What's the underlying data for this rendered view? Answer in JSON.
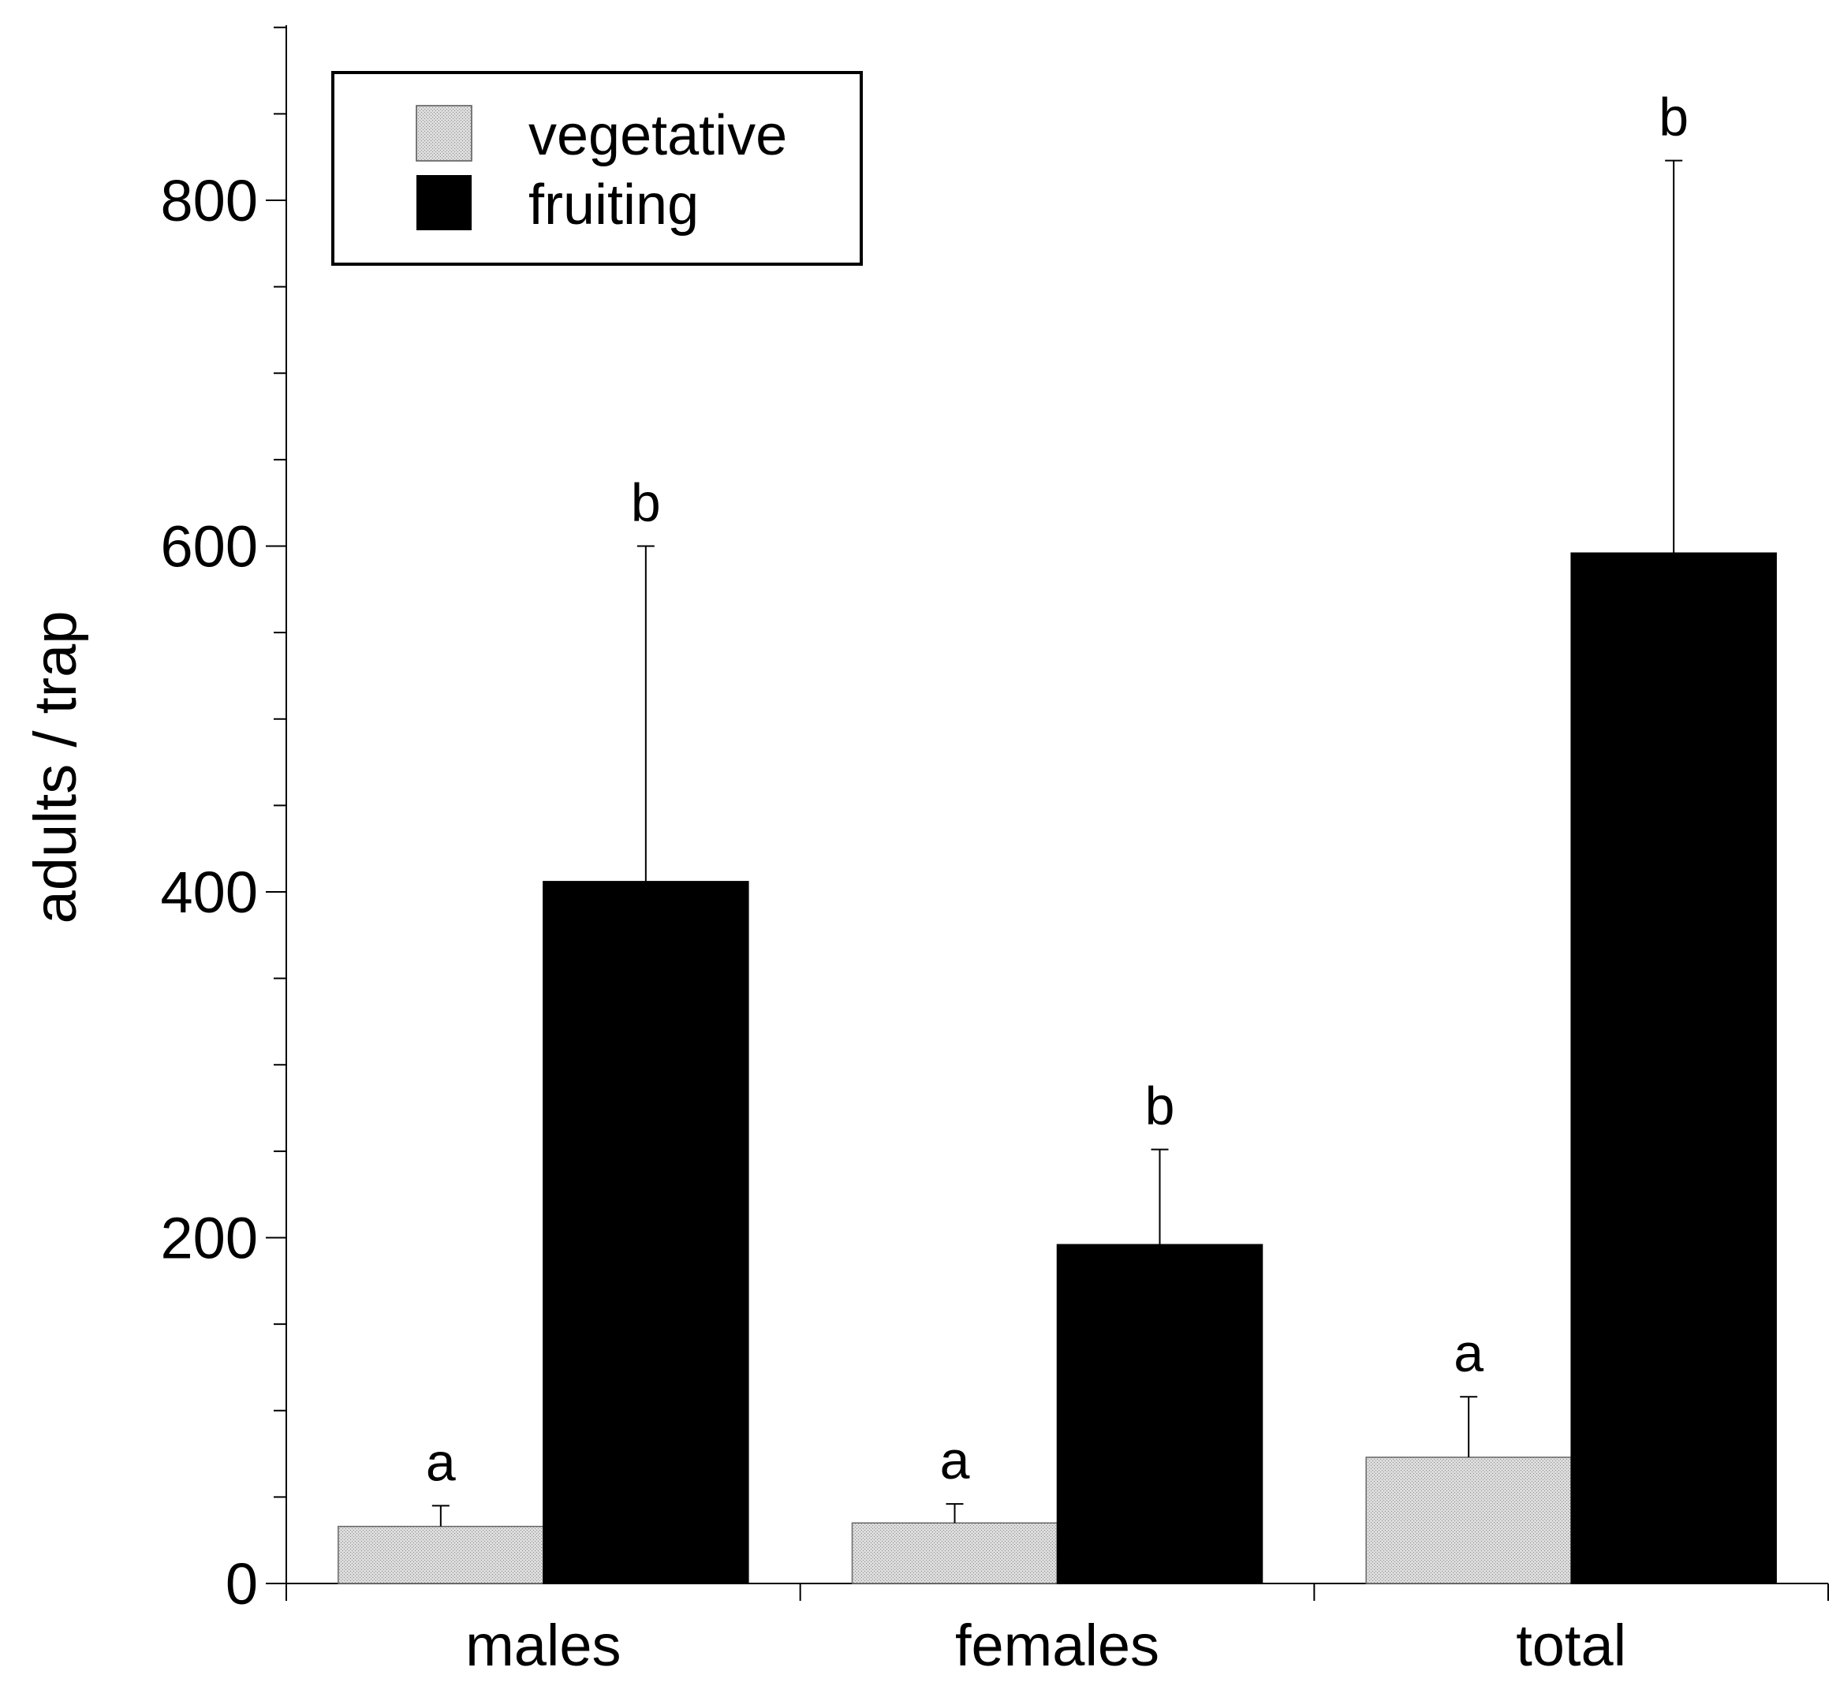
{
  "chart_data": {
    "type": "bar",
    "title": "",
    "xlabel": "",
    "ylabel": "adults / trap",
    "categories": [
      "males",
      "females",
      "total"
    ],
    "ylim": [
      0,
      900
    ],
    "yticks": [
      0,
      200,
      400,
      600,
      800
    ],
    "yticks_minor_step": 50,
    "legend_position": "top-left",
    "series": [
      {
        "name": "vegetative",
        "color": "#d4d4d4",
        "values": [
          33,
          35,
          73
        ],
        "errors": [
          12,
          11,
          35
        ],
        "labels": [
          "a",
          "a",
          "a"
        ]
      },
      {
        "name": "fruiting",
        "color": "#000000",
        "values": [
          406,
          196,
          596
        ],
        "errors": [
          194,
          55,
          227
        ],
        "labels": [
          "b",
          "b",
          "b"
        ]
      }
    ]
  }
}
